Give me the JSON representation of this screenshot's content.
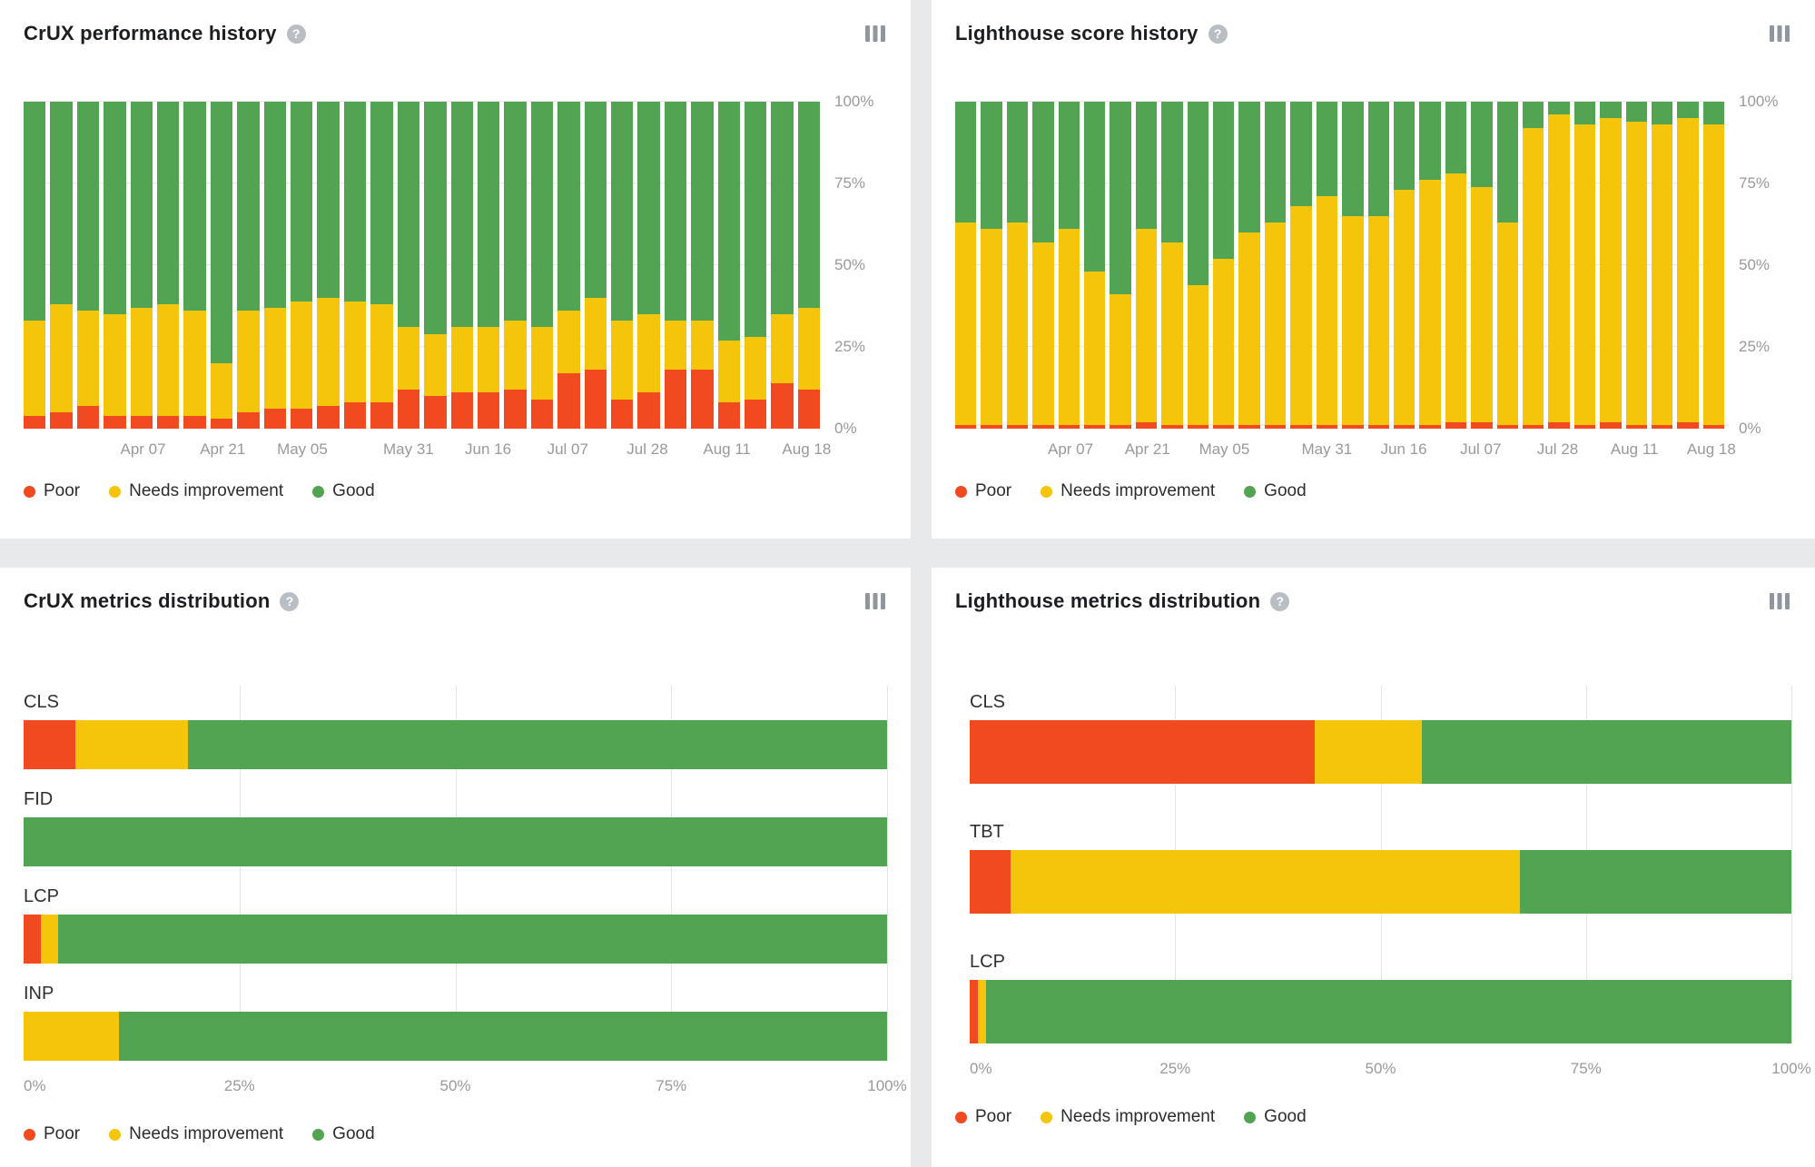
{
  "colors": {
    "poor": "#f14a21",
    "needs_improvement": "#f5c50b",
    "good": "#52a352",
    "page_background": "#e8e9eb",
    "card_background": "#ffffff",
    "axis_text": "#97999b",
    "gridline": "#e1e3e5"
  },
  "legend_labels": {
    "poor": "Poor",
    "needs_improvement": "Needs improvement",
    "good": "Good"
  },
  "icons": {
    "help": "?"
  },
  "panels": [
    {
      "id": "crux-history",
      "title": "CrUX performance history"
    },
    {
      "id": "lh-history",
      "title": "Lighthouse score history"
    },
    {
      "id": "crux-dist",
      "title": "CrUX metrics distribution"
    },
    {
      "id": "lh-dist",
      "title": "Lighthouse metrics distribution"
    }
  ],
  "chart_data": [
    {
      "id": "crux-history",
      "type": "bar",
      "stacked": true,
      "orientation": "vertical",
      "title": "CrUX performance history",
      "ylim": [
        0,
        100
      ],
      "y_ticks": [
        {
          "label": "100%",
          "value": 100
        },
        {
          "label": "75%",
          "value": 75
        },
        {
          "label": "50%",
          "value": 50
        },
        {
          "label": "25%",
          "value": 25
        },
        {
          "label": "0%",
          "value": 0
        }
      ],
      "x_tick_labels": [
        "Apr 07",
        "Apr 21",
        "May 05",
        "May 31",
        "Jun 16",
        "Jul 07",
        "Jul 28",
        "Aug 11",
        "Aug 18"
      ],
      "x_tick_bar_index": [
        4,
        7,
        10,
        14,
        17,
        20,
        23,
        26,
        29
      ],
      "legend": [
        "Poor",
        "Needs improvement",
        "Good"
      ],
      "legend_position": "bottom",
      "series": [
        {
          "key": "poor",
          "name": "Poor",
          "values": [
            4,
            5,
            7,
            4,
            4,
            4,
            4,
            3,
            5,
            6,
            6,
            7,
            8,
            8,
            12,
            10,
            11,
            11,
            12,
            9,
            17,
            18,
            9,
            11,
            18,
            18,
            8,
            9,
            14,
            12
          ]
        },
        {
          "key": "needs_improvement",
          "name": "Needs improvement",
          "values": [
            29,
            33,
            29,
            31,
            33,
            34,
            32,
            17,
            31,
            31,
            33,
            33,
            31,
            30,
            19,
            19,
            20,
            20,
            21,
            22,
            19,
            22,
            24,
            24,
            15,
            15,
            19,
            19,
            21,
            25
          ]
        },
        {
          "key": "good",
          "name": "Good",
          "values": [
            67,
            62,
            64,
            65,
            63,
            62,
            64,
            80,
            64,
            63,
            61,
            60,
            61,
            62,
            69,
            71,
            69,
            69,
            67,
            69,
            64,
            60,
            67,
            65,
            67,
            67,
            73,
            72,
            65,
            63
          ]
        }
      ]
    },
    {
      "id": "lh-history",
      "type": "bar",
      "stacked": true,
      "orientation": "vertical",
      "title": "Lighthouse score history",
      "ylim": [
        0,
        100
      ],
      "y_ticks": [
        {
          "label": "100%",
          "value": 100
        },
        {
          "label": "75%",
          "value": 75
        },
        {
          "label": "50%",
          "value": 50
        },
        {
          "label": "25%",
          "value": 25
        },
        {
          "label": "0%",
          "value": 0
        }
      ],
      "x_tick_labels": [
        "Apr 07",
        "Apr 21",
        "May 05",
        "May 31",
        "Jun 16",
        "Jul 07",
        "Jul 28",
        "Aug 11",
        "Aug 18"
      ],
      "x_tick_bar_index": [
        4,
        7,
        10,
        14,
        17,
        20,
        23,
        26,
        29
      ],
      "legend": [
        "Poor",
        "Needs improvement",
        "Good"
      ],
      "legend_position": "bottom",
      "series": [
        {
          "key": "poor",
          "name": "Poor",
          "values": [
            1,
            1,
            1,
            1,
            1,
            1,
            1,
            2,
            1,
            1,
            1,
            1,
            1,
            1,
            1,
            1,
            1,
            1,
            1,
            2,
            2,
            1,
            1,
            2,
            1,
            2,
            1,
            1,
            2,
            1
          ]
        },
        {
          "key": "needs_improvement",
          "name": "Needs improvement",
          "values": [
            62,
            60,
            62,
            56,
            60,
            47,
            40,
            59,
            56,
            43,
            51,
            59,
            62,
            67,
            70,
            64,
            64,
            72,
            75,
            76,
            72,
            62,
            91,
            94,
            92,
            93,
            93,
            92,
            93,
            92
          ]
        },
        {
          "key": "good",
          "name": "Good",
          "values": [
            37,
            39,
            37,
            43,
            39,
            52,
            59,
            39,
            43,
            56,
            48,
            40,
            37,
            32,
            29,
            35,
            35,
            27,
            24,
            22,
            26,
            37,
            8,
            4,
            7,
            5,
            6,
            7,
            5,
            7
          ]
        }
      ]
    },
    {
      "id": "crux-dist",
      "type": "bar",
      "stacked": true,
      "orientation": "horizontal",
      "title": "CrUX metrics distribution",
      "xlim": [
        0,
        100
      ],
      "categories": [
        "CLS",
        "FID",
        "LCP",
        "INP"
      ],
      "x_tick_labels": [
        "0%",
        "25%",
        "50%",
        "75%",
        "100%"
      ],
      "x_tick_values": [
        0,
        25,
        50,
        75,
        100
      ],
      "legend": [
        "Poor",
        "Needs improvement",
        "Good"
      ],
      "legend_position": "bottom",
      "series": [
        {
          "key": "poor",
          "name": "Poor",
          "values": [
            6,
            0,
            2,
            0
          ]
        },
        {
          "key": "needs_improvement",
          "name": "Needs improvement",
          "values": [
            13,
            0,
            2,
            11
          ]
        },
        {
          "key": "good",
          "name": "Good",
          "values": [
            81,
            100,
            96,
            89
          ]
        }
      ]
    },
    {
      "id": "lh-dist",
      "type": "bar",
      "stacked": true,
      "orientation": "horizontal",
      "title": "Lighthouse metrics distribution",
      "xlim": [
        0,
        100
      ],
      "categories": [
        "CLS",
        "TBT",
        "LCP"
      ],
      "x_tick_labels": [
        "0%",
        "25%",
        "50%",
        "75%",
        "100%"
      ],
      "x_tick_values": [
        0,
        25,
        50,
        75,
        100
      ],
      "legend": [
        "Poor",
        "Needs improvement",
        "Good"
      ],
      "legend_position": "bottom",
      "series": [
        {
          "key": "poor",
          "name": "Poor",
          "values": [
            42,
            5,
            1
          ]
        },
        {
          "key": "needs_improvement",
          "name": "Needs improvement",
          "values": [
            13,
            62,
            1
          ]
        },
        {
          "key": "good",
          "name": "Good",
          "values": [
            45,
            33,
            98
          ]
        }
      ]
    }
  ]
}
